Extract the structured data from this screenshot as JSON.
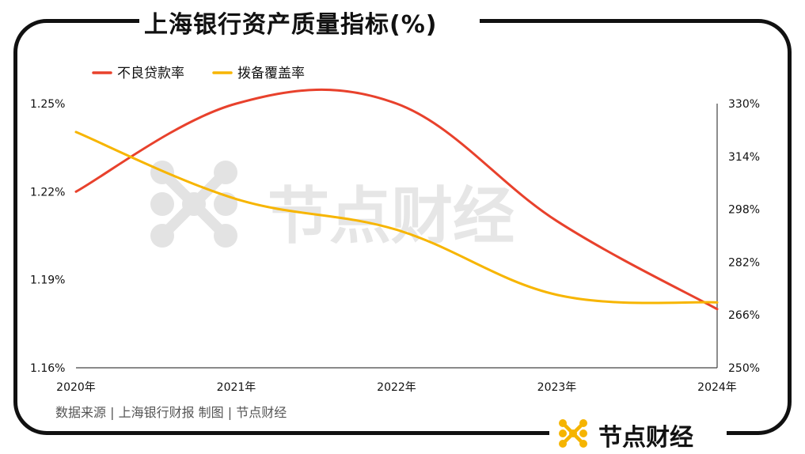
{
  "title": "上海银行资产质量指标(%)",
  "source_text": "数据来源 | 上海银行财报  制图 | 节点财经",
  "brand": {
    "name": "节点财经",
    "accent": "#f5b400"
  },
  "watermark": "节点财经",
  "chart_data": {
    "type": "line",
    "x": [
      "2020年",
      "2021年",
      "2022年",
      "2023年",
      "2024年"
    ],
    "y_left": {
      "ticks": [
        "1.25%",
        "1.22%",
        "1.19%",
        "1.16%"
      ],
      "ylim": [
        1.16,
        1.25
      ]
    },
    "y_right": {
      "ticks": [
        "330%",
        "314%",
        "298%",
        "282%",
        "266%",
        "250%"
      ],
      "ylim": [
        250,
        330
      ]
    },
    "legend_position": "top-left",
    "grid": false,
    "series": [
      {
        "name": "不良贷款率",
        "axis": "left",
        "color": "#e8412c",
        "values": [
          1.22,
          1.25,
          1.25,
          1.21,
          1.18
        ]
      },
      {
        "name": "拨备覆盖率",
        "axis": "right",
        "color": "#f7b500",
        "values": [
          321.4,
          301.1,
          291.8,
          272.1,
          269.8
        ]
      }
    ]
  }
}
